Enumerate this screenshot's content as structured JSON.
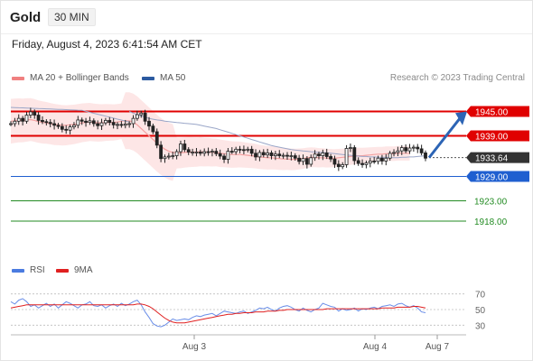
{
  "header": {
    "symbol": "Gold",
    "timeframe": "30 MIN"
  },
  "datetime": "Friday, August 4, 2023 6:41:54 AM CET",
  "legend": {
    "items": [
      {
        "label": "MA 20 + Bollinger Bands",
        "color": "#f08080"
      },
      {
        "label": "MA 50",
        "color": "#2c5aa0"
      }
    ],
    "copyright": "Research © 2023 Trading Central"
  },
  "rsi_legend": {
    "items": [
      {
        "label": "RSI",
        "color": "#4a7be0"
      },
      {
        "label": "9MA",
        "color": "#e02020"
      }
    ]
  },
  "chart_data": {
    "type": "candlestick",
    "x_ticks": [
      "Aug 3",
      "Aug 4",
      "Aug 7"
    ],
    "ylim": [
      1914,
      1950
    ],
    "levels": [
      {
        "label": "1945.00",
        "value": 1945.0,
        "color": "#e00000",
        "kind": "resistance"
      },
      {
        "label": "1939.00",
        "value": 1939.0,
        "color": "#e00000",
        "kind": "resistance"
      },
      {
        "label": "1933.64",
        "value": 1933.64,
        "color": "#333333",
        "kind": "last"
      },
      {
        "label": "1929.00",
        "value": 1929.0,
        "color": "#1f5fd0",
        "kind": "pivot"
      },
      {
        "label": "1923.00",
        "value": 1923.0,
        "color": "#228b22",
        "kind": "support"
      },
      {
        "label": "1918.00",
        "value": 1918.0,
        "color": "#228b22",
        "kind": "support"
      }
    ],
    "prices": [
      1942.0,
      1942.6,
      1943.3,
      1942.6,
      1944.1,
      1944.9,
      1944.1,
      1942.8,
      1942.5,
      1942.3,
      1942.0,
      1941.6,
      1941.3,
      1940.6,
      1940.4,
      1941.2,
      1941.6,
      1942.9,
      1942.6,
      1942.3,
      1942.7,
      1942.0,
      1941.5,
      1942.2,
      1942.8,
      1942.3,
      1941.7,
      1941.8,
      1941.6,
      1941.9,
      1942.0,
      1943.3,
      1944.2,
      1944.6,
      1942.6,
      1941.4,
      1940.0,
      1936.7,
      1933.4,
      1933.8,
      1934.0,
      1934.1,
      1935.1,
      1937.0,
      1935.6,
      1935.0,
      1935.0,
      1935.0,
      1934.7,
      1935.1,
      1935.0,
      1935.2,
      1934.6,
      1934.0,
      1933.2,
      1935.2,
      1935.1,
      1935.7,
      1935.6,
      1935.5,
      1935.7,
      1934.7,
      1933.8,
      1934.9,
      1934.3,
      1934.8,
      1934.1,
      1934.5,
      1934.1,
      1934.2,
      1934.0,
      1934.1,
      1933.5,
      1932.7,
      1933.4,
      1932.0,
      1933.6,
      1934.5,
      1934.1,
      1934.8,
      1933.9,
      1933.3,
      1932.0,
      1931.4,
      1931.9,
      1935.9,
      1936.1,
      1932.9,
      1932.2,
      1931.9,
      1932.3,
      1932.8,
      1932.7,
      1933.5,
      1932.8,
      1933.5,
      1934.7,
      1934.9,
      1935.3,
      1936.1,
      1935.3,
      1936.0,
      1936.2,
      1935.8,
      1934.8,
      1933.5
    ],
    "ma20": [
      1942.6,
      1942.7,
      1942.8,
      1942.8,
      1942.9,
      1943.0,
      1942.8,
      1942.5,
      1942.3,
      1942.2,
      1942.0,
      1941.8,
      1941.7,
      1941.6,
      1941.6,
      1941.7,
      1941.8,
      1942.0,
      1942.2,
      1942.3,
      1942.4,
      1942.3,
      1942.2,
      1942.2,
      1942.3,
      1942.3,
      1942.3,
      1942.4,
      1942.6,
      1942.7,
      1942.7,
      1942.4,
      1941.7,
      1940.8,
      1939.9,
      1939.0,
      1938.1,
      1937.2,
      1936.4,
      1935.7,
      1935.2,
      1934.9,
      1934.8,
      1934.8,
      1934.9,
      1935.0,
      1935.0,
      1935.0,
      1935.1,
      1935.0,
      1935.0,
      1934.9,
      1934.9,
      1934.7,
      1934.6,
      1934.5,
      1934.4,
      1934.4,
      1934.4,
      1934.3,
      1934.2,
      1934.1,
      1934.0,
      1933.8,
      1933.7,
      1933.6,
      1933.6,
      1933.5,
      1933.4,
      1933.3,
      1933.3,
      1933.2,
      1933.2,
      1933.3,
      1933.4,
      1933.6,
      1933.7,
      1933.7,
      1933.6,
      1933.6,
      1933.5,
      1933.5,
      1933.5,
      1933.6,
      1933.7,
      1933.8,
      1933.9,
      1934.0,
      1934.1,
      1934.1,
      1934.2,
      1934.3,
      1934.4,
      1934.5,
      1934.5,
      1934.6,
      1934.6,
      1934.6,
      1934.7,
      1934.7,
      1934.7,
      1934.7
    ],
    "ma50": [
      1945.0,
      1944.6,
      1944.2,
      1943.9,
      1943.6,
      1943.3,
      1943.1,
      1942.9,
      1942.8,
      1942.6,
      1942.5,
      1942.4,
      1942.3,
      1942.2,
      1942.1,
      1942.0,
      1941.9,
      1941.8,
      1941.6,
      1941.4,
      1941.2,
      1941.0,
      1940.8,
      1940.5,
      1940.2,
      1939.9,
      1939.6,
      1939.3,
      1939.0,
      1938.7,
      1938.4,
      1938.1,
      1937.8,
      1937.5,
      1937.2,
      1936.9,
      1936.6,
      1936.4,
      1936.2,
      1936.0,
      1935.8,
      1935.6,
      1935.5,
      1935.4,
      1935.3,
      1935.2,
      1935.1,
      1935.0,
      1934.9,
      1934.9,
      1934.8,
      1934.7,
      1934.6,
      1934.5,
      1934.4,
      1934.3,
      1934.2,
      1934.1,
      1934.0,
      1933.9,
      1933.9,
      1933.8,
      1933.8,
      1933.7,
      1933.7,
      1933.7,
      1933.6,
      1933.6,
      1933.6,
      1933.7,
      1933.7,
      1933.8,
      1933.8,
      1933.9,
      1934.0,
      1934.1
    ],
    "rsi": {
      "ticks": [
        70,
        50,
        30
      ],
      "ylim": [
        20,
        80
      ],
      "rsi": [
        60,
        57,
        62,
        64,
        60,
        54,
        56,
        52,
        55,
        58,
        54,
        57,
        52,
        56,
        60,
        58,
        55,
        52,
        56,
        57,
        60,
        55,
        54,
        56,
        52,
        55,
        57,
        54,
        58,
        55,
        57,
        60,
        62,
        56,
        47,
        40,
        32,
        29,
        28,
        30,
        34,
        38,
        36,
        37,
        38,
        37,
        40,
        42,
        41,
        43,
        44,
        45,
        42,
        45,
        48,
        47,
        46,
        45,
        47,
        48,
        45,
        47,
        49,
        52,
        51,
        53,
        50,
        48,
        52,
        54,
        55,
        53,
        50,
        48,
        52,
        49,
        47,
        50,
        52,
        58,
        56,
        54,
        53,
        48,
        51,
        49,
        50,
        52,
        48,
        51,
        50,
        52,
        53,
        51,
        54,
        55,
        56,
        54,
        57,
        58,
        55,
        53,
        55,
        52,
        47,
        46
      ],
      "ma": [
        52,
        53,
        54,
        55,
        56,
        56,
        56,
        56,
        56,
        56,
        56,
        56,
        56,
        56,
        56,
        56,
        56,
        56,
        56,
        56,
        56,
        56,
        56,
        56,
        56,
        56,
        56,
        56,
        56,
        56,
        56,
        56,
        57,
        57,
        56,
        54,
        51,
        47,
        43,
        39,
        36,
        34,
        33,
        33,
        33,
        34,
        35,
        36,
        37,
        38,
        39,
        40,
        41,
        42,
        43,
        44,
        44,
        45,
        45,
        46,
        46,
        46,
        47,
        47,
        47,
        48,
        48,
        48,
        49,
        49,
        50,
        50,
        50,
        50,
        50,
        50,
        50,
        50,
        50,
        50,
        51,
        51,
        51,
        51,
        51,
        51,
        51,
        51,
        51,
        51,
        51,
        51,
        51,
        51,
        52,
        52,
        52,
        52,
        53,
        53,
        53,
        53,
        54,
        54,
        53,
        52
      ]
    }
  }
}
